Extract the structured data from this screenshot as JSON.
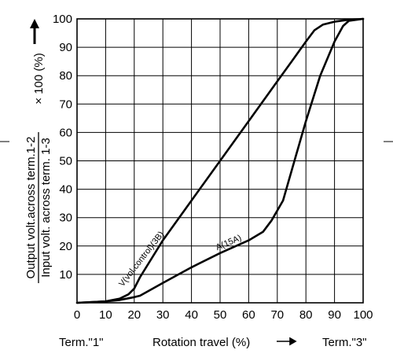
{
  "chart_data": {
    "type": "line",
    "x": {
      "range": [
        0,
        100
      ],
      "ticks": [
        0,
        10,
        20,
        30,
        40,
        50,
        60,
        70,
        80,
        90,
        100
      ]
    },
    "y": {
      "range": [
        0,
        100
      ],
      "ticks": [
        10,
        20,
        30,
        40,
        50,
        60,
        70,
        80,
        90,
        100
      ]
    },
    "grid": true,
    "xlabel": {
      "left": "Term.\"1\"",
      "center": "Rotation travel (%)",
      "right": "Term.\"3\""
    },
    "ylabel": {
      "numerator": "Output volt.across term.1-2",
      "denominator": "Input volt. across term. 1-3",
      "suffix": "× 100 (%)"
    },
    "series": [
      {
        "name": "V(vol.control)(3B)",
        "points": [
          [
            0,
            0
          ],
          [
            10,
            0.5
          ],
          [
            15,
            1.5
          ],
          [
            18,
            3
          ],
          [
            20,
            5
          ],
          [
            22,
            9
          ],
          [
            30,
            22
          ],
          [
            40,
            36
          ],
          [
            50,
            50
          ],
          [
            60,
            64
          ],
          [
            70,
            78
          ],
          [
            75,
            85
          ],
          [
            80,
            92
          ],
          [
            83,
            96
          ],
          [
            86,
            98
          ],
          [
            90,
            99
          ],
          [
            95,
            99.7
          ],
          [
            100,
            100
          ]
        ]
      },
      {
        "name": "A(15A)",
        "points": [
          [
            0,
            0
          ],
          [
            10,
            0.5
          ],
          [
            15,
            1
          ],
          [
            20,
            2
          ],
          [
            22,
            2.5
          ],
          [
            30,
            7
          ],
          [
            40,
            12.5
          ],
          [
            50,
            17.5
          ],
          [
            60,
            22
          ],
          [
            65,
            25
          ],
          [
            68,
            29
          ],
          [
            72,
            36
          ],
          [
            76,
            50
          ],
          [
            80,
            64
          ],
          [
            85,
            80
          ],
          [
            90,
            92
          ],
          [
            93,
            97.5
          ],
          [
            95,
            99.3
          ],
          [
            100,
            100
          ]
        ]
      }
    ],
    "annotations": [
      {
        "text": "V(vol.control)(3B)",
        "series": "V(vol.control)(3B)"
      },
      {
        "text": "A(15A)",
        "series": "A(15A)"
      }
    ]
  }
}
